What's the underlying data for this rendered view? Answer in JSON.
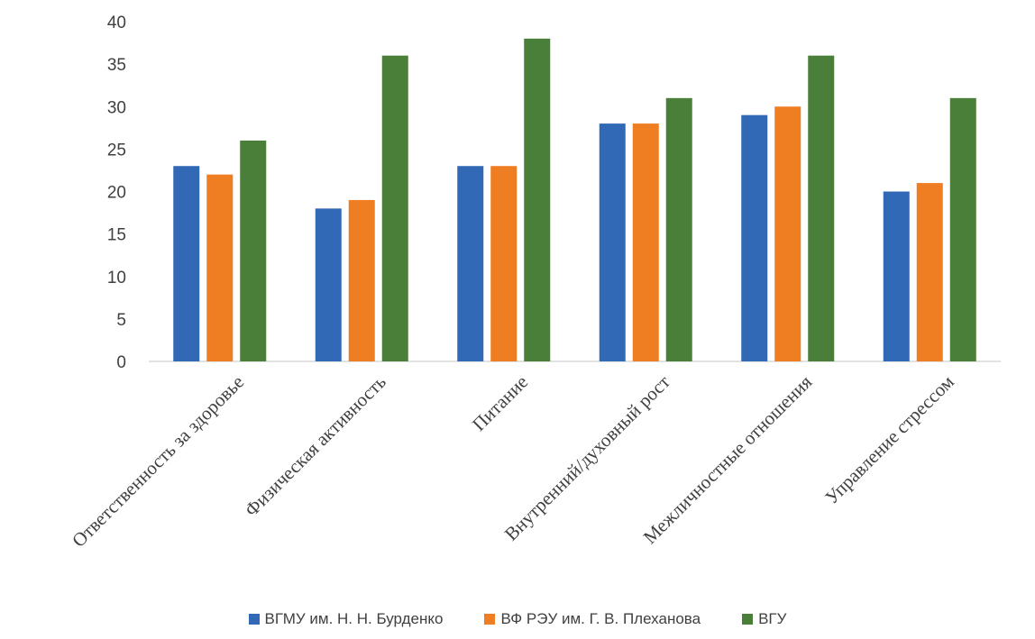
{
  "chart_data": {
    "type": "bar",
    "categories": [
      "Ответственность за здоровье",
      "Физическая активность",
      "Питание",
      "Внутренний/духовный рост",
      "Межличностные отношения",
      "Управление стрессом"
    ],
    "series": [
      {
        "name": "ВГМУ им. Н. Н. Бурденко",
        "color": "#3269b6",
        "values": [
          23,
          18,
          23,
          28,
          29,
          20
        ]
      },
      {
        "name": "ВФ РЭУ им. Г. В. Плеханова",
        "color": "#ef7d22",
        "values": [
          22,
          19,
          23,
          28,
          30,
          21
        ]
      },
      {
        "name": "ВГУ",
        "color": "#4a7f39",
        "values": [
          26,
          36,
          38,
          31,
          36,
          31
        ]
      }
    ],
    "ylim": [
      0,
      40
    ],
    "yticks": [
      0,
      5,
      10,
      15,
      20,
      25,
      30,
      35,
      40
    ],
    "grid": false,
    "legend_position": "bottom"
  }
}
